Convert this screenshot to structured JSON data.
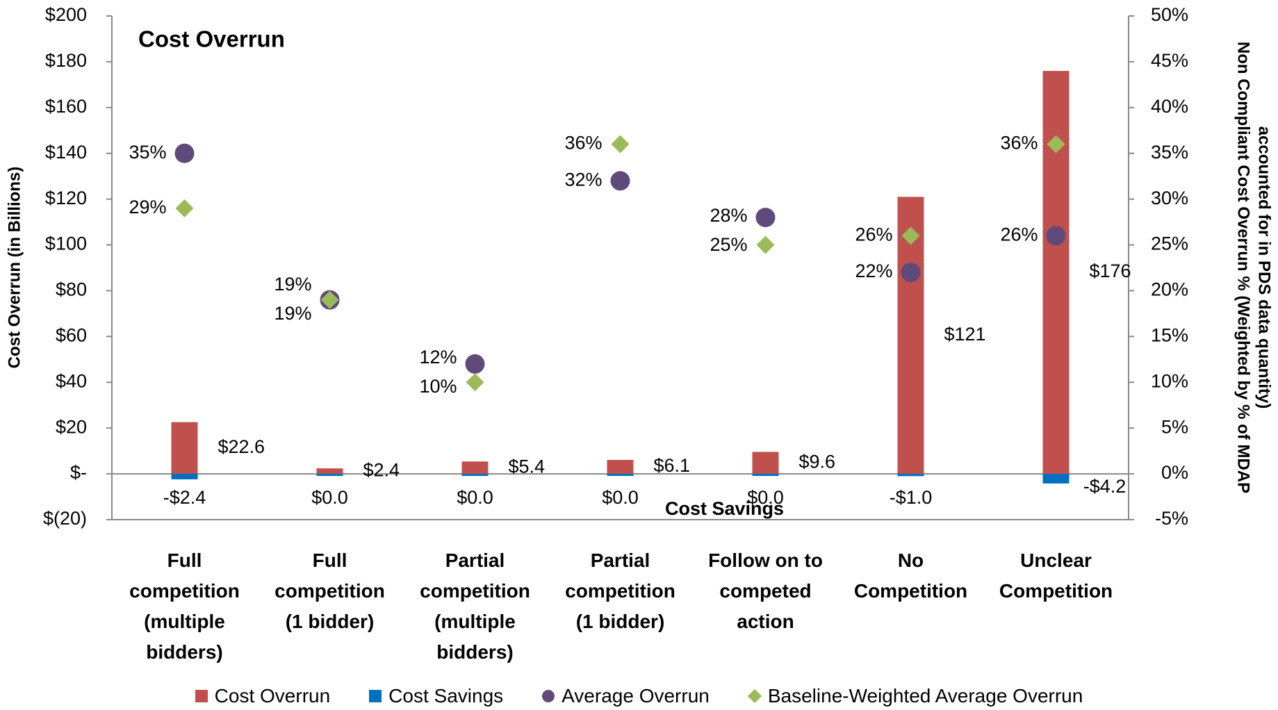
{
  "chart_data": {
    "type": "bar",
    "title": "Cost Overrun",
    "annotation": "Cost Savings",
    "y_label": "Cost Overrun (in Billions)",
    "y2_label": [
      "Non Compliant Cost Overrun % (Weighted by % of MDAP",
      "accounted for in PDS data quantity)"
    ],
    "categories": [
      "Full competition (multiple bidders)",
      "Full competition (1 bidder)",
      "Partial competition (multiple bidders)",
      "Partial competition (1 bidder)",
      "Follow on to competed action",
      "No Competition",
      "Unclear Competition"
    ],
    "series": [
      {
        "name": "Cost Overrun",
        "type": "bar",
        "color": "#c0504d",
        "values": [
          22.6,
          2.4,
          5.4,
          6.1,
          9.6,
          121,
          176
        ],
        "value_labels": [
          "$22.6",
          "$2.4",
          "$5.4",
          "$6.1",
          "$9.6",
          "$121",
          "$176"
        ]
      },
      {
        "name": "Cost Savings",
        "type": "bar",
        "color": "#0070c0",
        "values": [
          -2.4,
          0.0,
          0.0,
          0.0,
          0.0,
          -1.0,
          -4.2
        ],
        "value_labels": [
          "-$2.4",
          "$0.0",
          "$0.0",
          "$0.0",
          "$0.0",
          "-$1.0",
          "-$4.2"
        ]
      },
      {
        "name": "Average Overrun",
        "type": "scatter",
        "marker": "circle",
        "axis": "y2",
        "color": "#604a7b",
        "values": [
          35,
          19,
          12,
          32,
          28,
          22,
          26
        ],
        "value_labels": [
          "35%",
          "19%",
          "12%",
          "32%",
          "28%",
          "22%",
          "26%"
        ]
      },
      {
        "name": "Baseline-Weighted Average Overrun",
        "type": "scatter",
        "marker": "diamond",
        "axis": "y2",
        "color": "#9bbb59",
        "values": [
          29,
          19,
          10,
          36,
          25,
          26,
          36
        ],
        "value_labels": [
          "29%",
          "19%",
          "10%",
          "36%",
          "25%",
          "26%",
          "36%"
        ]
      }
    ],
    "ylim": [
      -20,
      200
    ],
    "yticks": [
      {
        "value": -20,
        "label": "$(20)"
      },
      {
        "value": 0,
        "label": "$-"
      },
      {
        "value": 20,
        "label": "$20"
      },
      {
        "value": 40,
        "label": "$40"
      },
      {
        "value": 60,
        "label": "$60"
      },
      {
        "value": 80,
        "label": "$80"
      },
      {
        "value": 100,
        "label": "$100"
      },
      {
        "value": 120,
        "label": "$120"
      },
      {
        "value": 140,
        "label": "$140"
      },
      {
        "value": 160,
        "label": "$160"
      },
      {
        "value": 180,
        "label": "$180"
      },
      {
        "value": 200,
        "label": "$200"
      }
    ],
    "y2lim": [
      -5,
      50
    ],
    "y2ticks": [
      {
        "value": -5,
        "label": "-5%"
      },
      {
        "value": 0,
        "label": "0%"
      },
      {
        "value": 5,
        "label": "5%"
      },
      {
        "value": 10,
        "label": "10%"
      },
      {
        "value": 15,
        "label": "15%"
      },
      {
        "value": 20,
        "label": "20%"
      },
      {
        "value": 25,
        "label": "25%"
      },
      {
        "value": 30,
        "label": "30%"
      },
      {
        "value": 35,
        "label": "35%"
      },
      {
        "value": 40,
        "label": "40%"
      },
      {
        "value": 45,
        "label": "45%"
      },
      {
        "value": 50,
        "label": "50%"
      }
    ],
    "grid": false,
    "legend": "bottom"
  }
}
